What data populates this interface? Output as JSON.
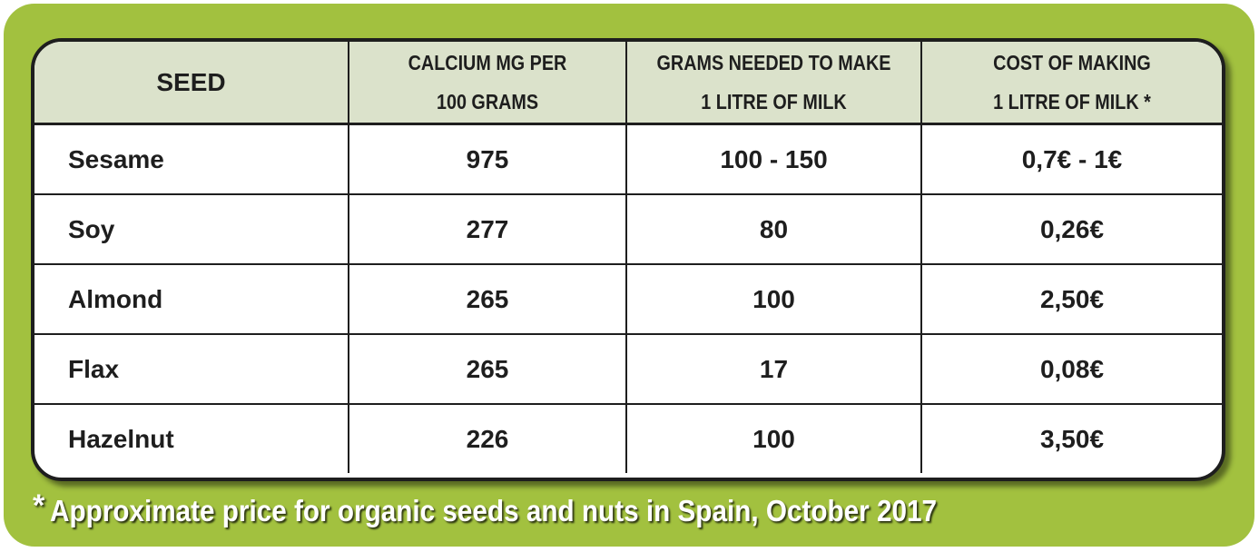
{
  "table": {
    "headers": [
      {
        "lines": [
          "SEED"
        ]
      },
      {
        "lines": [
          "CALCIUM MG PER",
          "100 GRAMS"
        ]
      },
      {
        "lines": [
          "GRAMS NEEDED TO MAKE",
          "1 LITRE OF MILK"
        ]
      },
      {
        "lines": [
          "COST OF MAKING",
          "1 LITRE OF MILK *"
        ]
      }
    ],
    "rows": [
      {
        "seed": "Sesame",
        "calcium": "975",
        "grams": "100 - 150",
        "cost": "0,7€ - 1€"
      },
      {
        "seed": "Soy",
        "calcium": "277",
        "grams": "80",
        "cost": "0,26€"
      },
      {
        "seed": "Almond",
        "calcium": "265",
        "grams": "100",
        "cost": "2,50€"
      },
      {
        "seed": "Flax",
        "calcium": "265",
        "grams": "17",
        "cost": "0,08€"
      },
      {
        "seed": "Hazelnut",
        "calcium": "226",
        "grams": "100",
        "cost": "3,50€"
      }
    ]
  },
  "footnote": {
    "marker": "*",
    "text": "Approximate price for organic seeds and nuts in Spain, October 2017"
  },
  "colors": {
    "background_green": "#a2c13f",
    "header_fill": "#dbe2cb",
    "border": "#1e1e1e"
  }
}
